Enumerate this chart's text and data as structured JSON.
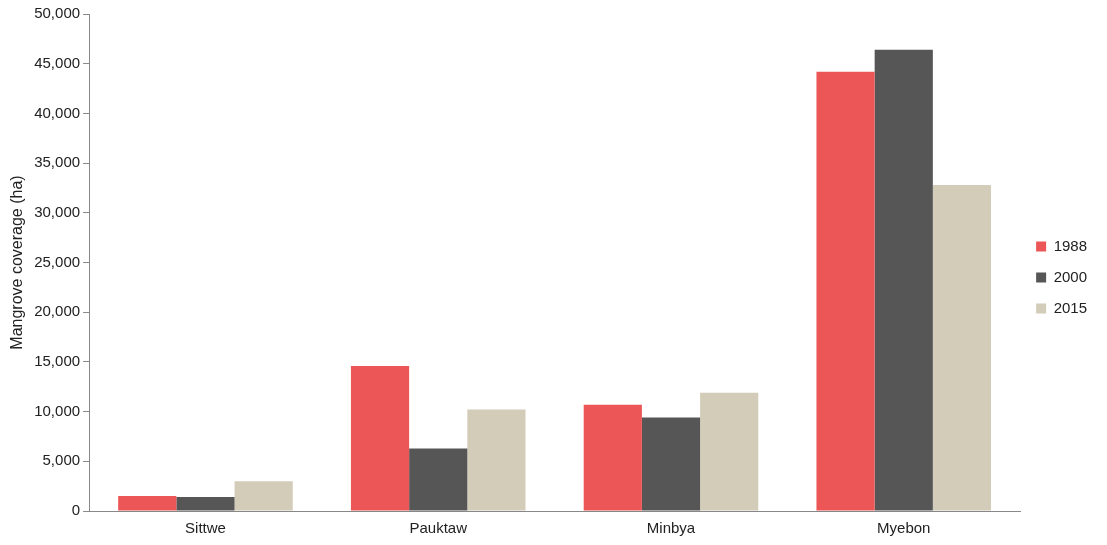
{
  "chart_data": {
    "type": "bar",
    "ylabel": "Mangrove coverage (ha)",
    "categories": [
      "Sittwe",
      "Pauktaw",
      "Minbya",
      "Myebon"
    ],
    "series": [
      {
        "name": "1988",
        "color": "#ed5656",
        "values": [
          1500,
          14600,
          10700,
          44200
        ]
      },
      {
        "name": "2000",
        "color": "#565657",
        "values": [
          1400,
          6300,
          9400,
          46400
        ]
      },
      {
        "name": "2015",
        "color": "#d3ccb9",
        "values": [
          3000,
          10200,
          11900,
          32800
        ]
      }
    ],
    "ylim": [
      0,
      50000
    ],
    "yticks": [
      {
        "value": 0,
        "label": "0"
      },
      {
        "value": 5000,
        "label": "5,000"
      },
      {
        "value": 10000,
        "label": "10,000"
      },
      {
        "value": 15000,
        "label": "15,000"
      },
      {
        "value": 20000,
        "label": "20,000"
      },
      {
        "value": 25000,
        "label": "25,000"
      },
      {
        "value": 30000,
        "label": "30,000"
      },
      {
        "value": 35000,
        "label": "35,000"
      },
      {
        "value": 40000,
        "label": "40,000"
      },
      {
        "value": 45000,
        "label": "45,000"
      },
      {
        "value": 50000,
        "label": "50,000"
      }
    ],
    "grid": false,
    "legend": "right"
  }
}
